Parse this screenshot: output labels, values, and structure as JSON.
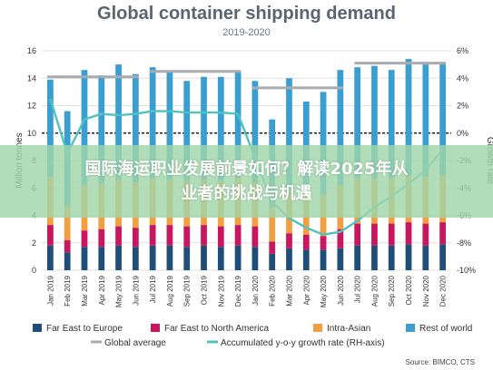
{
  "chart_data": {
    "type": "bar",
    "title": "Global container shipping demand",
    "subtitle": "2019-2020",
    "ylabel": "Million tonnes",
    "y2label": "Growth rate",
    "ylim": [
      0,
      16
    ],
    "y2lim": [
      -10,
      6
    ],
    "yticks": [
      "0",
      "2",
      "4",
      "6",
      "8",
      "10",
      "12",
      "14",
      "16"
    ],
    "y2ticks": [
      "-10%",
      "-8%",
      "-6%",
      "-4%",
      "-2%",
      "0%",
      "2%",
      "4%",
      "6%"
    ],
    "categories": [
      "Jan 2019",
      "Feb 2019",
      "Mar 2019",
      "Apr 2019",
      "May 2019",
      "Jun 2019",
      "Jul 2019",
      "Aug 2019",
      "Sep 2019",
      "Oct 2019",
      "Nov 2019",
      "Dec 2019",
      "Jan 2020",
      "Feb 2020",
      "Mar 2020",
      "Apr 2020",
      "May 2020",
      "Jun 2020",
      "Jul 2020",
      "Aug 2020",
      "Sep 2020",
      "Oct 2020",
      "Nov 2020",
      "Dec 2020"
    ],
    "series": [
      {
        "name": "Far East to Europe",
        "color": "#1f4e79",
        "values": [
          1.8,
          1.3,
          1.7,
          1.7,
          1.8,
          1.7,
          1.8,
          1.8,
          1.7,
          1.8,
          1.7,
          1.8,
          1.7,
          1.2,
          1.6,
          1.5,
          1.5,
          1.6,
          1.8,
          1.8,
          1.8,
          1.9,
          1.8,
          1.9
        ]
      },
      {
        "name": "Far East to North America",
        "color": "#c8175e",
        "values": [
          1.5,
          0.9,
          1.2,
          1.3,
          1.4,
          1.4,
          1.5,
          1.5,
          1.5,
          1.5,
          1.5,
          1.5,
          1.5,
          0.9,
          1.1,
          1.1,
          1.0,
          1.4,
          1.6,
          1.6,
          1.6,
          1.6,
          1.6,
          1.6
        ]
      },
      {
        "name": "Intra-Asian",
        "color": "#f0a040",
        "values": [
          3.5,
          2.5,
          3.3,
          3.3,
          3.4,
          3.3,
          3.4,
          3.3,
          3.3,
          3.3,
          3.3,
          3.4,
          3.2,
          2.5,
          3.1,
          3.0,
          3.0,
          3.2,
          3.3,
          3.3,
          3.3,
          3.4,
          3.4,
          3.4
        ]
      },
      {
        "name": "Rest of world",
        "color": "#3a9fd0",
        "values": [
          7.1,
          6.9,
          8.4,
          7.9,
          8.4,
          7.9,
          8.1,
          7.9,
          7.3,
          7.5,
          7.6,
          7.8,
          7.4,
          6.4,
          8.2,
          6.7,
          7.5,
          8.4,
          8.1,
          8.2,
          7.9,
          8.5,
          8.2,
          8.2
        ]
      },
      {
        "name": "Global average",
        "color": "#a8acb0",
        "type": "step",
        "segments": [
          [
            0,
            5,
            14.1
          ],
          [
            6,
            11,
            14.5
          ],
          [
            12,
            17,
            13.3
          ],
          [
            18,
            23,
            15.1
          ]
        ]
      },
      {
        "name": "Accumulated y-o-y growth rate (RH-axis)",
        "color": "#4fc3c0",
        "axis": "right",
        "values": [
          2.5,
          -1.5,
          1.0,
          1.4,
          1.3,
          1.4,
          1.6,
          1.6,
          1.5,
          1.5,
          1.5,
          1.4,
          -1.8,
          -5.0,
          -6.2,
          -6.9,
          -7.4,
          -7.2,
          -6.4,
          -5.4,
          -4.6,
          -3.7,
          -2.7,
          -1.2
        ]
      }
    ],
    "legend": [
      "Far East to Europe",
      "Far East to North America",
      "Intra-Asian",
      "Rest of world",
      "Global average",
      "Accumulated y-o-y growth rate (RH-axis)"
    ],
    "legend_position": "bottom",
    "grid": true
  },
  "overlay": {
    "banner_line1": "国际海运职业发展前景如何？解读2025年从",
    "banner_line2": "业者的挑战与机遇"
  },
  "source": "Source: BIMCO, CTS"
}
